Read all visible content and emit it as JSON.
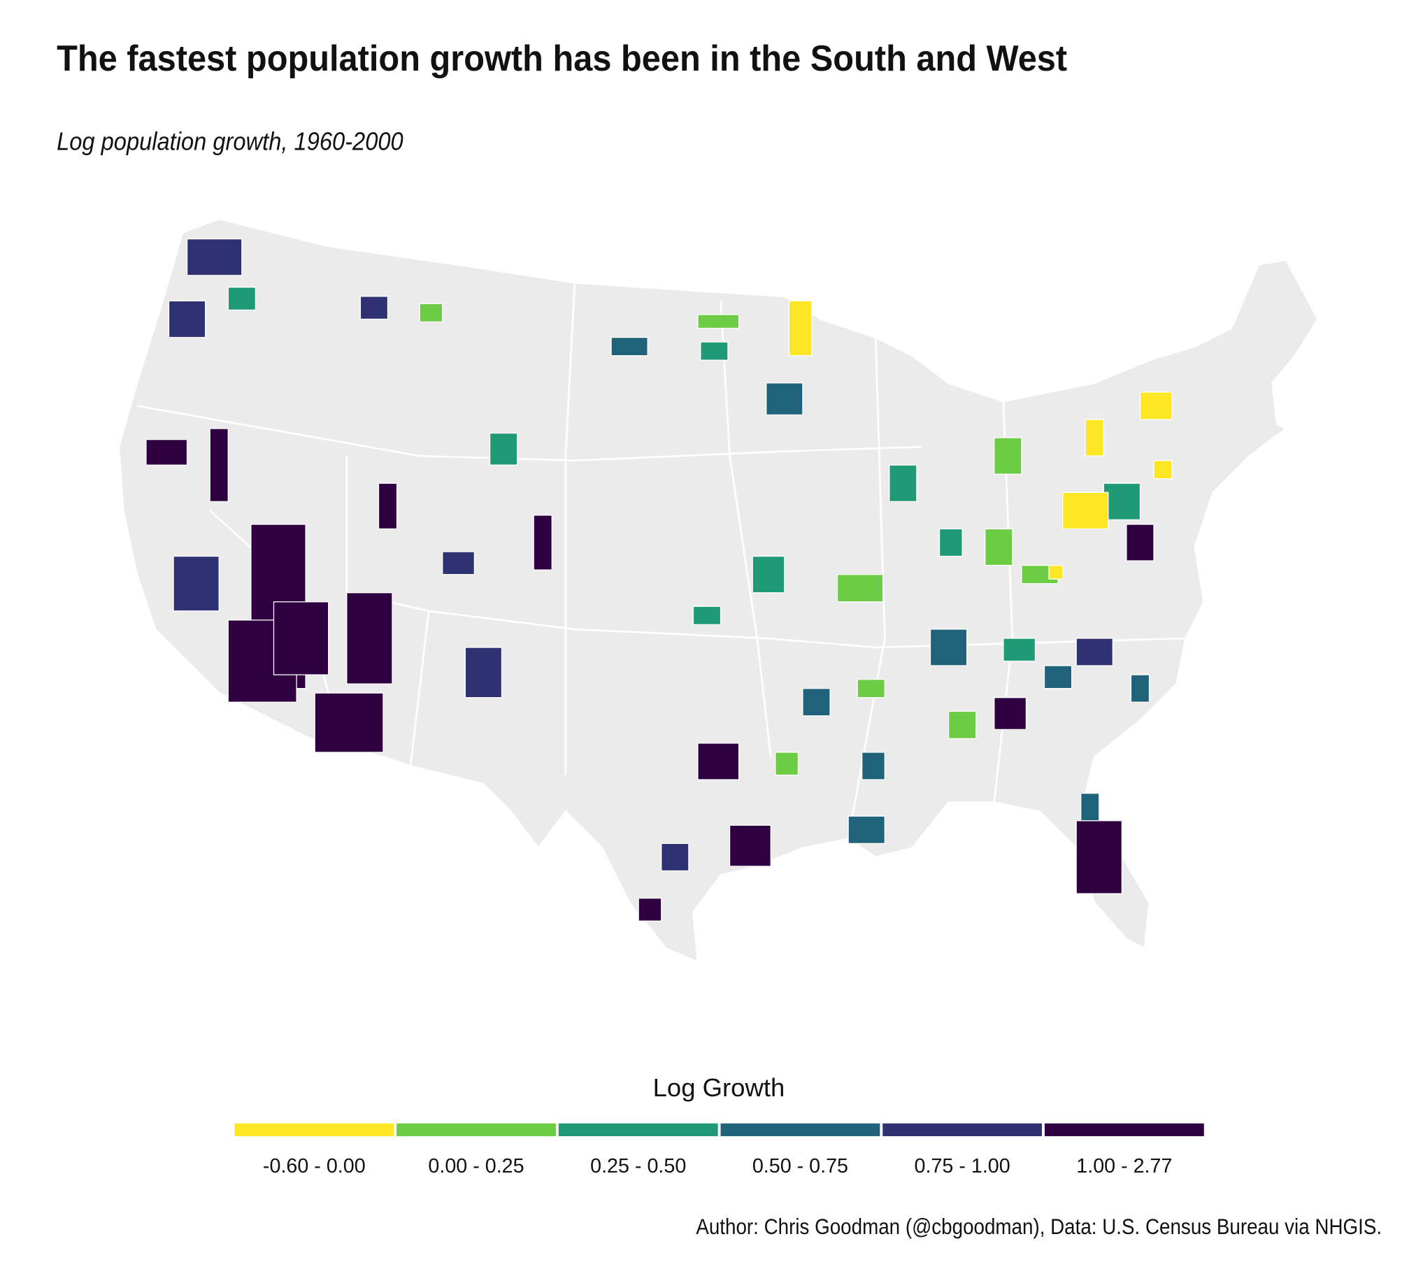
{
  "header": {
    "title": "The fastest population growth has been in the South and West",
    "subtitle": "Log population growth, 1960-2000"
  },
  "legend": {
    "title": "Log Growth",
    "bins": [
      {
        "label": "-0.60 - 0.00",
        "color": "#fde725"
      },
      {
        "label": "0.00 - 0.25",
        "color": "#6ccd45"
      },
      {
        "label": "0.25 - 0.50",
        "color": "#1f9a76"
      },
      {
        "label": "0.50 - 0.75",
        "color": "#1f6279"
      },
      {
        "label": "0.75 - 1.00",
        "color": "#2e3272"
      },
      {
        "label": "1.00 - 2.77",
        "color": "#2e0040"
      }
    ]
  },
  "caption": "Author: Chris Goodman (@cbgoodman), Data: U.S. Census Bureau via NHGIS."
}
